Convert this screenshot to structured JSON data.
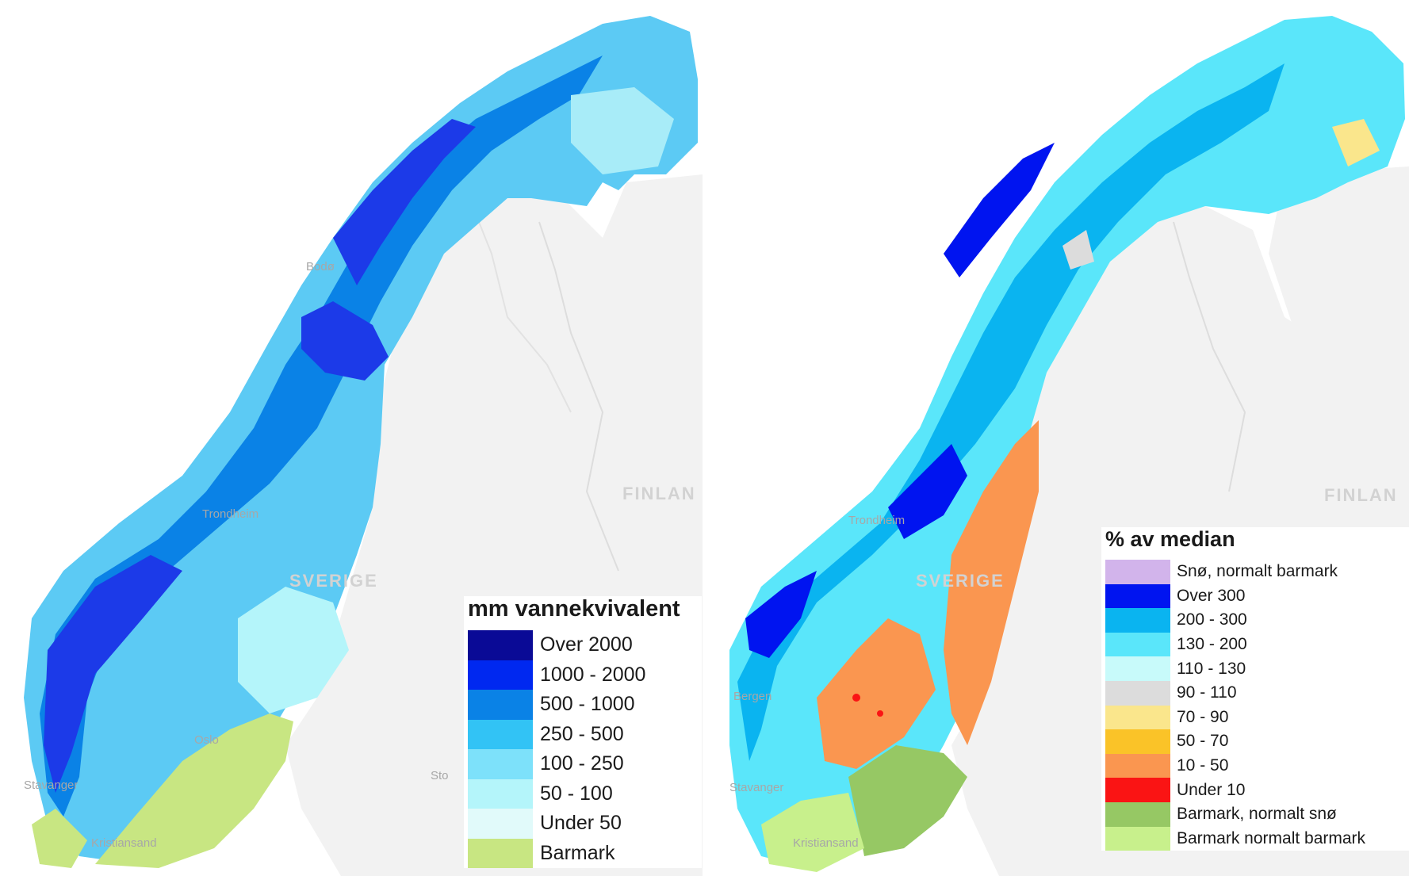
{
  "map_left": {
    "legend": {
      "title": "mm vannekvivalent",
      "items": [
        {
          "label": "Over 2000",
          "color": "#0a0a96"
        },
        {
          "label": "1000 - 2000",
          "color": "#0028f0"
        },
        {
          "label": "500 - 1000",
          "color": "#0a82e6"
        },
        {
          "label": "250 - 500",
          "color": "#32c3f5"
        },
        {
          "label": "100 - 250",
          "color": "#7de1fa"
        },
        {
          "label": "50 - 100",
          "color": "#b4f5fa"
        },
        {
          "label": "Under 50",
          "color": "#e1fafa"
        },
        {
          "label": "Barmark",
          "color": "#c8e682"
        }
      ]
    },
    "places": [
      "Bodø",
      "Trondheim",
      "Oslo",
      "Stavanger",
      "Kristiansand",
      "Sto"
    ],
    "countries": [
      "SVERIGE",
      "FINLAN"
    ]
  },
  "map_right": {
    "legend": {
      "title": "% av median",
      "items": [
        {
          "label": "Snø, normalt barmark",
          "color": "#d2b4eb"
        },
        {
          "label": "Over 300",
          "color": "#0014f0"
        },
        {
          "label": "200 - 300",
          "color": "#0ab4f0"
        },
        {
          "label": "130 - 200",
          "color": "#5ae6fa"
        },
        {
          "label": "110 - 130",
          "color": "#c8fafa"
        },
        {
          "label": "90 - 110",
          "color": "#dcdcdc"
        },
        {
          "label": "70 - 90",
          "color": "#fae68c"
        },
        {
          "label": "50 - 70",
          "color": "#fac328"
        },
        {
          "label": "10 - 50",
          "color": "#fa9650"
        },
        {
          "label": "Under 10",
          "color": "#fa1414"
        },
        {
          "label": "Barmark, normalt snø",
          "color": "#96c864"
        },
        {
          "label": "Barmark normalt barmark",
          "color": "#c8f08c"
        }
      ]
    },
    "places": [
      "Bergen",
      "Trondheim",
      "Stavanger",
      "Kristiansand"
    ],
    "countries": [
      "SVERIGE",
      "FINLAN"
    ]
  }
}
